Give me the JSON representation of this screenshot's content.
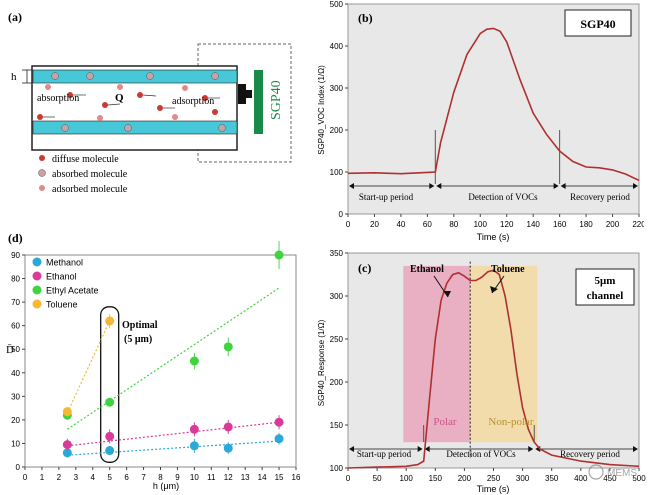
{
  "panel_a": {
    "label": "(a)",
    "h_label": "h",
    "absorption": "absorption",
    "adsorption": "adsorption",
    "q": "Q",
    "sensor": "SGP40",
    "legend": [
      "diffuse molecule",
      "absorbed molecule",
      "adsorbed molecule"
    ],
    "colors": {
      "channel": "#46c8d8",
      "sensor": "#1a8a4a",
      "diffuse": "#c83a32",
      "absorbed": "#c9a2a6",
      "adsorbed": "#e08a8a"
    }
  },
  "panel_b": {
    "label": "(b)",
    "sensor_box": "SGP40",
    "periods": [
      "Start-up period",
      "Detection of VOCs",
      "Recovery period"
    ]
  },
  "panel_c": {
    "label": "(c)",
    "box": [
      "5μm",
      "channel"
    ],
    "ethanol": "Ethanol",
    "toluene": "Toluene",
    "polar": "Polar",
    "nonpolar": "Non-polar",
    "periods": [
      "Start-up period",
      "Detection of VOCs",
      "Recovery period"
    ],
    "watermark": "MEMS"
  },
  "panel_d": {
    "label": "(d)",
    "optimal": [
      "Optimal",
      "(5 μm)"
    ]
  },
  "chart_data": [
    {
      "id": "b",
      "type": "line",
      "xlabel": "Time (s)",
      "ylabel": "SGP40_VOC Index (1/Ω)",
      "xlim": [
        0,
        220
      ],
      "ylim": [
        0,
        500
      ],
      "xticks": [
        0,
        20,
        40,
        60,
        80,
        100,
        120,
        140,
        160,
        180,
        200,
        220
      ],
      "yticks": [
        0,
        100,
        200,
        300,
        400,
        500
      ],
      "grid": false,
      "series": [
        {
          "color": "#b03030",
          "x": [
            0,
            20,
            40,
            60,
            66,
            70,
            80,
            90,
            100,
            105,
            110,
            115,
            120,
            130,
            140,
            150,
            160,
            170,
            180,
            190,
            200,
            210,
            220
          ],
          "y": [
            97,
            98,
            96,
            99,
            100,
            170,
            290,
            380,
            430,
            440,
            442,
            435,
            410,
            320,
            240,
            190,
            150,
            125,
            112,
            110,
            105,
            95,
            80
          ]
        }
      ],
      "markers_x": [
        66,
        160
      ]
    },
    {
      "id": "c",
      "type": "line",
      "xlabel": "Time (s)",
      "ylabel": "SGP40_Response (1/Ω)",
      "xlim": [
        0,
        500
      ],
      "ylim": [
        100,
        350
      ],
      "xticks": [
        0,
        50,
        100,
        150,
        200,
        250,
        300,
        350,
        400,
        450,
        500
      ],
      "yticks": [
        100,
        150,
        200,
        250,
        300,
        350
      ],
      "grid": false,
      "series": [
        {
          "color": "#b03030",
          "x": [
            0,
            50,
            100,
            120,
            130,
            140,
            150,
            160,
            170,
            180,
            190,
            200,
            210,
            220,
            230,
            240,
            250,
            260,
            270,
            280,
            290,
            300,
            310,
            320,
            330,
            350,
            400,
            450,
            500
          ],
          "y": [
            100,
            101,
            102,
            104,
            108,
            180,
            250,
            295,
            315,
            325,
            327,
            323,
            318,
            318,
            322,
            328,
            330,
            325,
            300,
            260,
            210,
            170,
            145,
            130,
            122,
            115,
            108,
            104,
            102
          ]
        }
      ],
      "markers_x": [
        130,
        320
      ],
      "dotted_x": 210,
      "polar_band": [
        95,
        210
      ],
      "nonpolar_band": [
        210,
        325
      ],
      "colors": {
        "polar": "#e8a0b8",
        "nonpolar": "#f3d9a0",
        "bg": "#e8e8e8"
      }
    },
    {
      "id": "d",
      "type": "scatter",
      "xlabel": "h (μm)",
      "ylabel": "D̄",
      "xlim": [
        0,
        16
      ],
      "ylim": [
        0,
        90
      ],
      "xticks": [
        0,
        1,
        2,
        3,
        4,
        5,
        6,
        7,
        8,
        9,
        10,
        11,
        12,
        13,
        14,
        15,
        16
      ],
      "yticks": [
        0,
        10,
        20,
        30,
        40,
        50,
        60,
        70,
        80,
        90
      ],
      "grid": false,
      "legend": "top-left",
      "series": [
        {
          "name": "Methanol",
          "color": "#2aa8d8",
          "x": [
            2.5,
            5,
            10,
            12,
            15
          ],
          "y": [
            6,
            7,
            9,
            8,
            12
          ],
          "err": [
            2,
            2,
            3,
            2.5,
            2.5
          ],
          "trend": [
            [
              2.5,
              5
            ],
            [
              15,
              11
            ]
          ]
        },
        {
          "name": "Ethanol",
          "color": "#d83a98",
          "x": [
            2.5,
            5,
            10,
            12,
            15
          ],
          "y": [
            9.5,
            13,
            16,
            17,
            19
          ],
          "err": [
            2.5,
            3,
            3,
            3,
            3
          ],
          "trend": [
            [
              2.5,
              9
            ],
            [
              15,
              19
            ]
          ]
        },
        {
          "name": "Ethyl Acetate",
          "color": "#3fd43f",
          "x": [
            2.5,
            5,
            10,
            12,
            15
          ],
          "y": [
            22,
            27.5,
            45,
            51,
            90
          ],
          "err": [
            2,
            1.5,
            3.5,
            4,
            6
          ],
          "trend": [
            [
              2.5,
              16
            ],
            [
              15,
              76
            ]
          ]
        },
        {
          "name": "Toluene",
          "color": "#f5b830",
          "x": [
            2.5,
            5
          ],
          "y": [
            23.5,
            62
          ],
          "err": [
            2,
            3
          ],
          "trend": [
            [
              2.5,
              23
            ],
            [
              5,
              62
            ]
          ]
        }
      ]
    }
  ]
}
